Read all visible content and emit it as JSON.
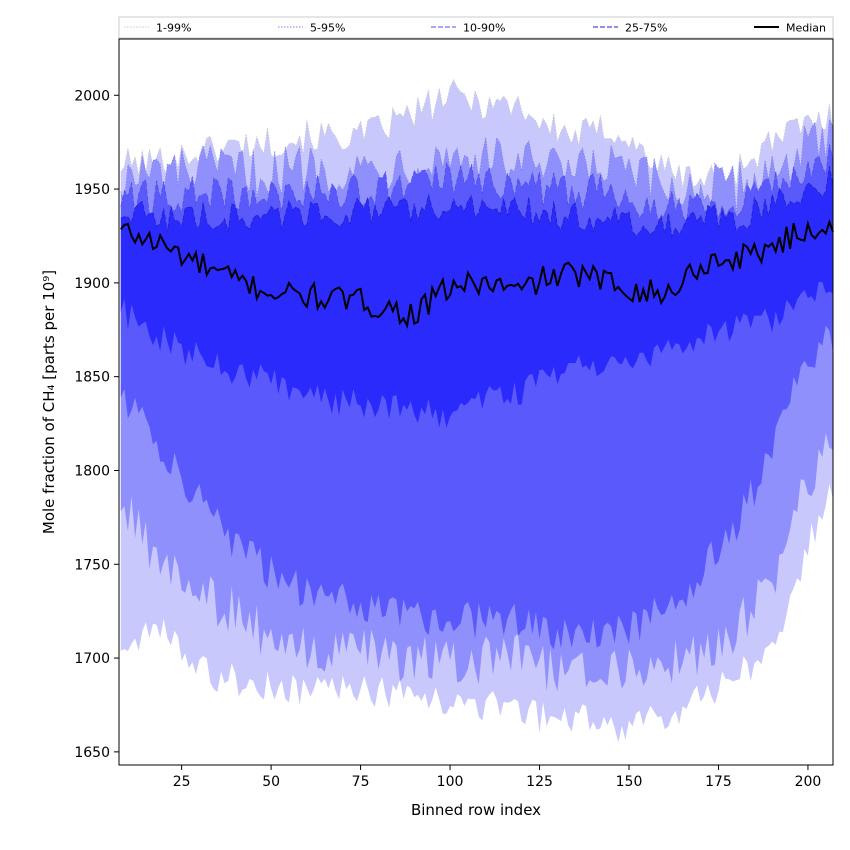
{
  "chart_data": {
    "type": "area",
    "title": "",
    "xlabel": "Binned row index",
    "ylabel": "Mole fraction of CH₄ [parts per 10⁹]",
    "xlim": [
      7.5,
      207
    ],
    "ylim": [
      1643,
      2030
    ],
    "x_ticks": [
      25,
      50,
      75,
      100,
      125,
      150,
      175,
      200
    ],
    "y_ticks": [
      1650,
      1700,
      1750,
      1800,
      1850,
      1900,
      1950,
      2000
    ],
    "legend_position": "top (above plot area)",
    "grid": false,
    "x_start": 8,
    "x_end": 207,
    "x_step": 1,
    "anchor_x": [
      8,
      20,
      35,
      50,
      60,
      75,
      90,
      100,
      110,
      120,
      125,
      135,
      145,
      160,
      170,
      180,
      190,
      200,
      207
    ],
    "bands": [
      {
        "name": "1-99%",
        "color": "#c8c8fc",
        "line_color": "#c8c8c8",
        "line_style": "dotted",
        "lower": [
          1705,
          1715,
          1690,
          1685,
          1683,
          1683,
          1680,
          1673,
          1675,
          1670,
          1668,
          1668,
          1662,
          1668,
          1678,
          1690,
          1705,
          1760,
          1790
        ],
        "upper": [
          1963,
          1965,
          1972,
          1975,
          1978,
          1978,
          1990,
          2000,
          1996,
          1995,
          1985,
          1978,
          1983,
          1960,
          1955,
          1960,
          1975,
          1985,
          1988
        ]
      },
      {
        "name": "5-95%",
        "color": "#9090fc",
        "line_color": "#8080e8",
        "line_style": "dotted",
        "lower": [
          1780,
          1750,
          1730,
          1710,
          1702,
          1702,
          1700,
          1698,
          1698,
          1700,
          1695,
          1695,
          1693,
          1698,
          1700,
          1715,
          1740,
          1795,
          1820
        ],
        "upper": [
          1955,
          1958,
          1960,
          1958,
          1962,
          1960,
          1965,
          1968,
          1965,
          1965,
          1960,
          1958,
          1962,
          1950,
          1950,
          1950,
          1960,
          1972,
          1975
        ]
      },
      {
        "name": "10-90%",
        "color": "#5a5afc",
        "line_color": "#5050e8",
        "line_style": "dashed",
        "lower": [
          1840,
          1810,
          1770,
          1745,
          1735,
          1730,
          1722,
          1720,
          1720,
          1720,
          1715,
          1712,
          1712,
          1725,
          1745,
          1770,
          1810,
          1860,
          1870
        ],
        "upper": [
          1945,
          1945,
          1948,
          1945,
          1950,
          1948,
          1952,
          1955,
          1952,
          1955,
          1950,
          1948,
          1950,
          1940,
          1942,
          1945,
          1950,
          1962,
          1965
        ]
      },
      {
        "name": "25-75%",
        "color": "#2a2afc",
        "line_color": "#2020d0",
        "line_style": "dashed",
        "lower": [
          1885,
          1870,
          1855,
          1850,
          1840,
          1835,
          1832,
          1830,
          1838,
          1840,
          1848,
          1855,
          1858,
          1865,
          1870,
          1875,
          1880,
          1895,
          1900
        ],
        "upper": [
          1938,
          1935,
          1935,
          1935,
          1938,
          1938,
          1938,
          1942,
          1938,
          1940,
          1936,
          1935,
          1935,
          1930,
          1933,
          1935,
          1940,
          1952,
          1955
        ]
      }
    ],
    "median": {
      "name": "Median",
      "color": "#000000",
      "values": [
        1928,
        1920,
        1905,
        1895,
        1893,
        1890,
        1883,
        1898,
        1900,
        1895,
        1902,
        1905,
        1900,
        1893,
        1910,
        1913,
        1920,
        1928,
        1932
      ]
    }
  }
}
